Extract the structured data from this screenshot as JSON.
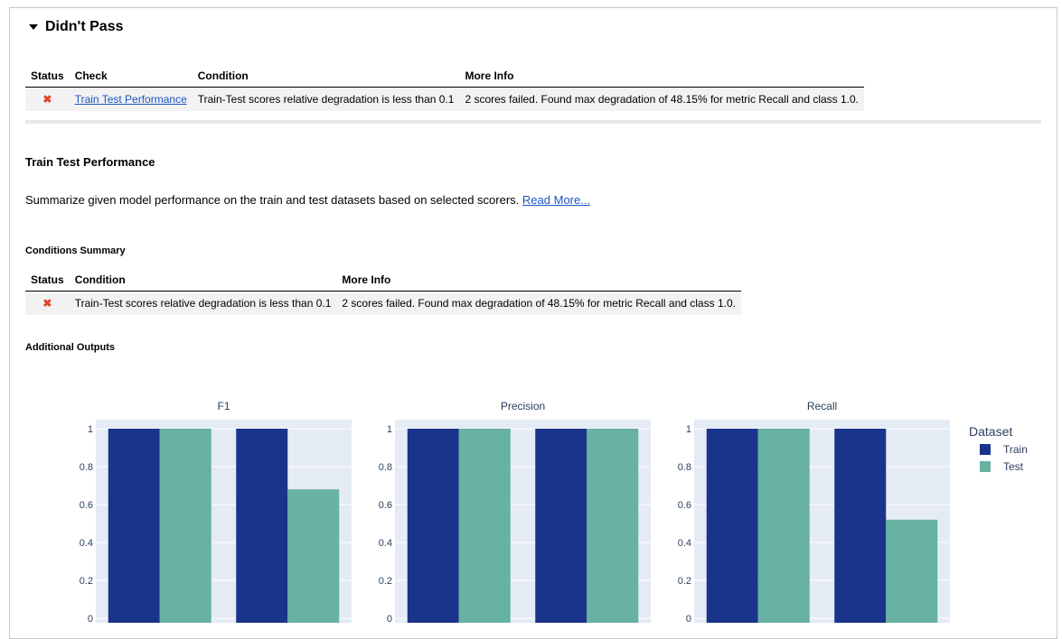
{
  "section": {
    "title": "Didn't Pass"
  },
  "top_table": {
    "headers": [
      "Status",
      "Check",
      "Condition",
      "More Info"
    ],
    "row": {
      "status": "✖",
      "check": "Train Test Performance",
      "condition": "Train-Test scores relative degradation is less than 0.1",
      "more_info": "2 scores failed. Found max degradation of 48.15% for metric Recall and class 1.0."
    }
  },
  "check": {
    "title": "Train Test Performance",
    "summary": "Summarize given model performance on the train and test datasets based on selected scorers.",
    "read_more": "Read More..."
  },
  "conditions_summary": {
    "heading": "Conditions Summary",
    "headers": [
      "Status",
      "Condition",
      "More Info"
    ],
    "row": {
      "status": "✖",
      "condition": "Train-Test scores relative degradation is less than 0.1",
      "more_info": "2 scores failed. Found max degradation of 48.15% for metric Recall and class 1.0."
    }
  },
  "additional_outputs": {
    "heading": "Additional Outputs"
  },
  "colors": {
    "train": "#19348a",
    "test": "#67b2a2",
    "plot_bg": "#e5ebf5",
    "fail": "#e8412c",
    "link": "#1a56c4"
  },
  "chart_data": {
    "type": "bar",
    "legend": {
      "title": "Dataset",
      "position": "right",
      "entries": [
        "Train",
        "Test"
      ]
    },
    "yticks": [
      "0",
      "0.2",
      "0.4",
      "0.6",
      "0.8",
      "1"
    ],
    "ylim": [
      0,
      1
    ],
    "panels": [
      {
        "title": "F1",
        "series": [
          {
            "name": "Train",
            "values": [
              1.0,
              1.0
            ]
          },
          {
            "name": "Test",
            "values": [
              1.0,
              0.68
            ]
          }
        ]
      },
      {
        "title": "Precision",
        "series": [
          {
            "name": "Train",
            "values": [
              1.0,
              1.0
            ]
          },
          {
            "name": "Test",
            "values": [
              1.0,
              1.0
            ]
          }
        ]
      },
      {
        "title": "Recall",
        "series": [
          {
            "name": "Train",
            "values": [
              1.0,
              1.0
            ]
          },
          {
            "name": "Test",
            "values": [
              1.0,
              0.52
            ]
          }
        ]
      }
    ]
  }
}
